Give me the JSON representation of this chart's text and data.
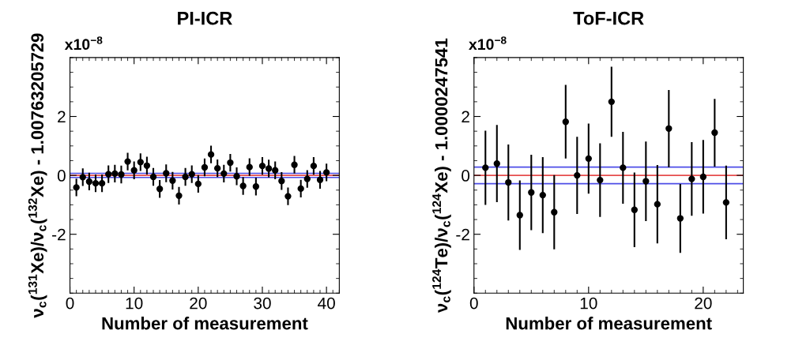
{
  "chart_data": [
    {
      "type": "scatter",
      "title": "PI-ICR",
      "xlabel": "Number of measurement",
      "ylabel": "ν$_{c}$($^{131}$Xe)/ν$_{c}$($^{132}$Xe) - 1.00763205729",
      "annotations": [
        "x10$^{−8}$"
      ],
      "marker": "circle",
      "grid": false,
      "x": [
        1,
        2,
        3,
        4,
        5,
        6,
        7,
        8,
        9,
        10,
        11,
        12,
        13,
        14,
        15,
        16,
        17,
        18,
        19,
        20,
        21,
        22,
        23,
        24,
        25,
        26,
        27,
        28,
        29,
        30,
        31,
        32,
        33,
        34,
        35,
        36,
        37,
        38,
        39,
        40
      ],
      "series": [
        {
          "color": "#000000",
          "values": [
            -0.41,
            -0.06,
            -0.21,
            -0.27,
            -0.27,
            0.04,
            0.06,
            0.03,
            0.47,
            0.17,
            0.45,
            0.33,
            -0.05,
            -0.46,
            0.07,
            -0.18,
            -0.69,
            -0.05,
            0.04,
            -0.29,
            0.27,
            0.71,
            0.24,
            0.06,
            0.43,
            -0.03,
            -0.36,
            0.28,
            -0.38,
            0.32,
            0.23,
            0.17,
            -0.19,
            -0.71,
            0.36,
            -0.45,
            -0.12,
            0.32,
            -0.15,
            0.1
          ],
          "errors": [
            0.3,
            0.3,
            0.3,
            0.3,
            0.3,
            0.3,
            0.3,
            0.3,
            0.3,
            0.3,
            0.3,
            0.3,
            0.3,
            0.3,
            0.3,
            0.3,
            0.3,
            0.3,
            0.3,
            0.3,
            0.3,
            0.3,
            0.3,
            0.3,
            0.3,
            0.3,
            0.3,
            0.3,
            0.3,
            0.3,
            0.3,
            0.3,
            0.3,
            0.3,
            0.3,
            0.3,
            0.3,
            0.3,
            0.3,
            0.3
          ]
        }
      ],
      "ref_lines": [
        {
          "axis": "y",
          "value": 0.07,
          "color": "#2020e0"
        },
        {
          "axis": "y",
          "value": -0.07,
          "color": "#2020e0"
        },
        {
          "axis": "y",
          "value": 0,
          "color": "#e02020"
        }
      ],
      "xlim": [
        0,
        42
      ],
      "xticks": [
        0,
        10,
        20,
        30,
        40
      ],
      "ylim": [
        -4,
        4
      ],
      "yticks": [
        -2,
        0,
        2
      ]
    },
    {
      "type": "scatter",
      "title": "ToF-ICR",
      "xlabel": "Number of measurement",
      "ylabel": "ν$_{c}$($^{124}$Te)/ν$_{c}$($^{124}$Xe) - 1.0000247541",
      "annotations": [
        "x10$^{−8}$"
      ],
      "marker": "circle",
      "grid": false,
      "x": [
        1,
        2,
        3,
        4,
        5,
        6,
        7,
        8,
        9,
        10,
        11,
        12,
        13,
        14,
        15,
        16,
        17,
        18,
        19,
        20,
        21,
        22
      ],
      "series": [
        {
          "color": "#000000",
          "values": [
            0.26,
            0.4,
            -0.24,
            -1.35,
            -0.58,
            -0.67,
            -1.25,
            1.82,
            0.0,
            0.57,
            -0.16,
            2.5,
            0.26,
            -1.17,
            -0.2,
            -0.98,
            1.59,
            -1.46,
            -0.12,
            -0.05,
            1.45,
            -0.92
          ],
          "errors": [
            1.26,
            1.31,
            1.29,
            1.18,
            1.28,
            1.29,
            1.26,
            1.25,
            1.31,
            1.19,
            1.25,
            1.19,
            1.22,
            1.27,
            1.35,
            1.33,
            1.31,
            1.17,
            1.25,
            1.25,
            1.15,
            1.25
          ]
        }
      ],
      "ref_lines": [
        {
          "axis": "y",
          "value": 0.28,
          "color": "#2020e0"
        },
        {
          "axis": "y",
          "value": -0.28,
          "color": "#2020e0"
        },
        {
          "axis": "y",
          "value": 0,
          "color": "#e02020"
        }
      ],
      "xlim": [
        0,
        23.5
      ],
      "xticks": [
        0,
        10,
        20
      ],
      "ylim": [
        -4,
        4
      ],
      "yticks": [
        -2,
        0,
        2
      ]
    }
  ]
}
